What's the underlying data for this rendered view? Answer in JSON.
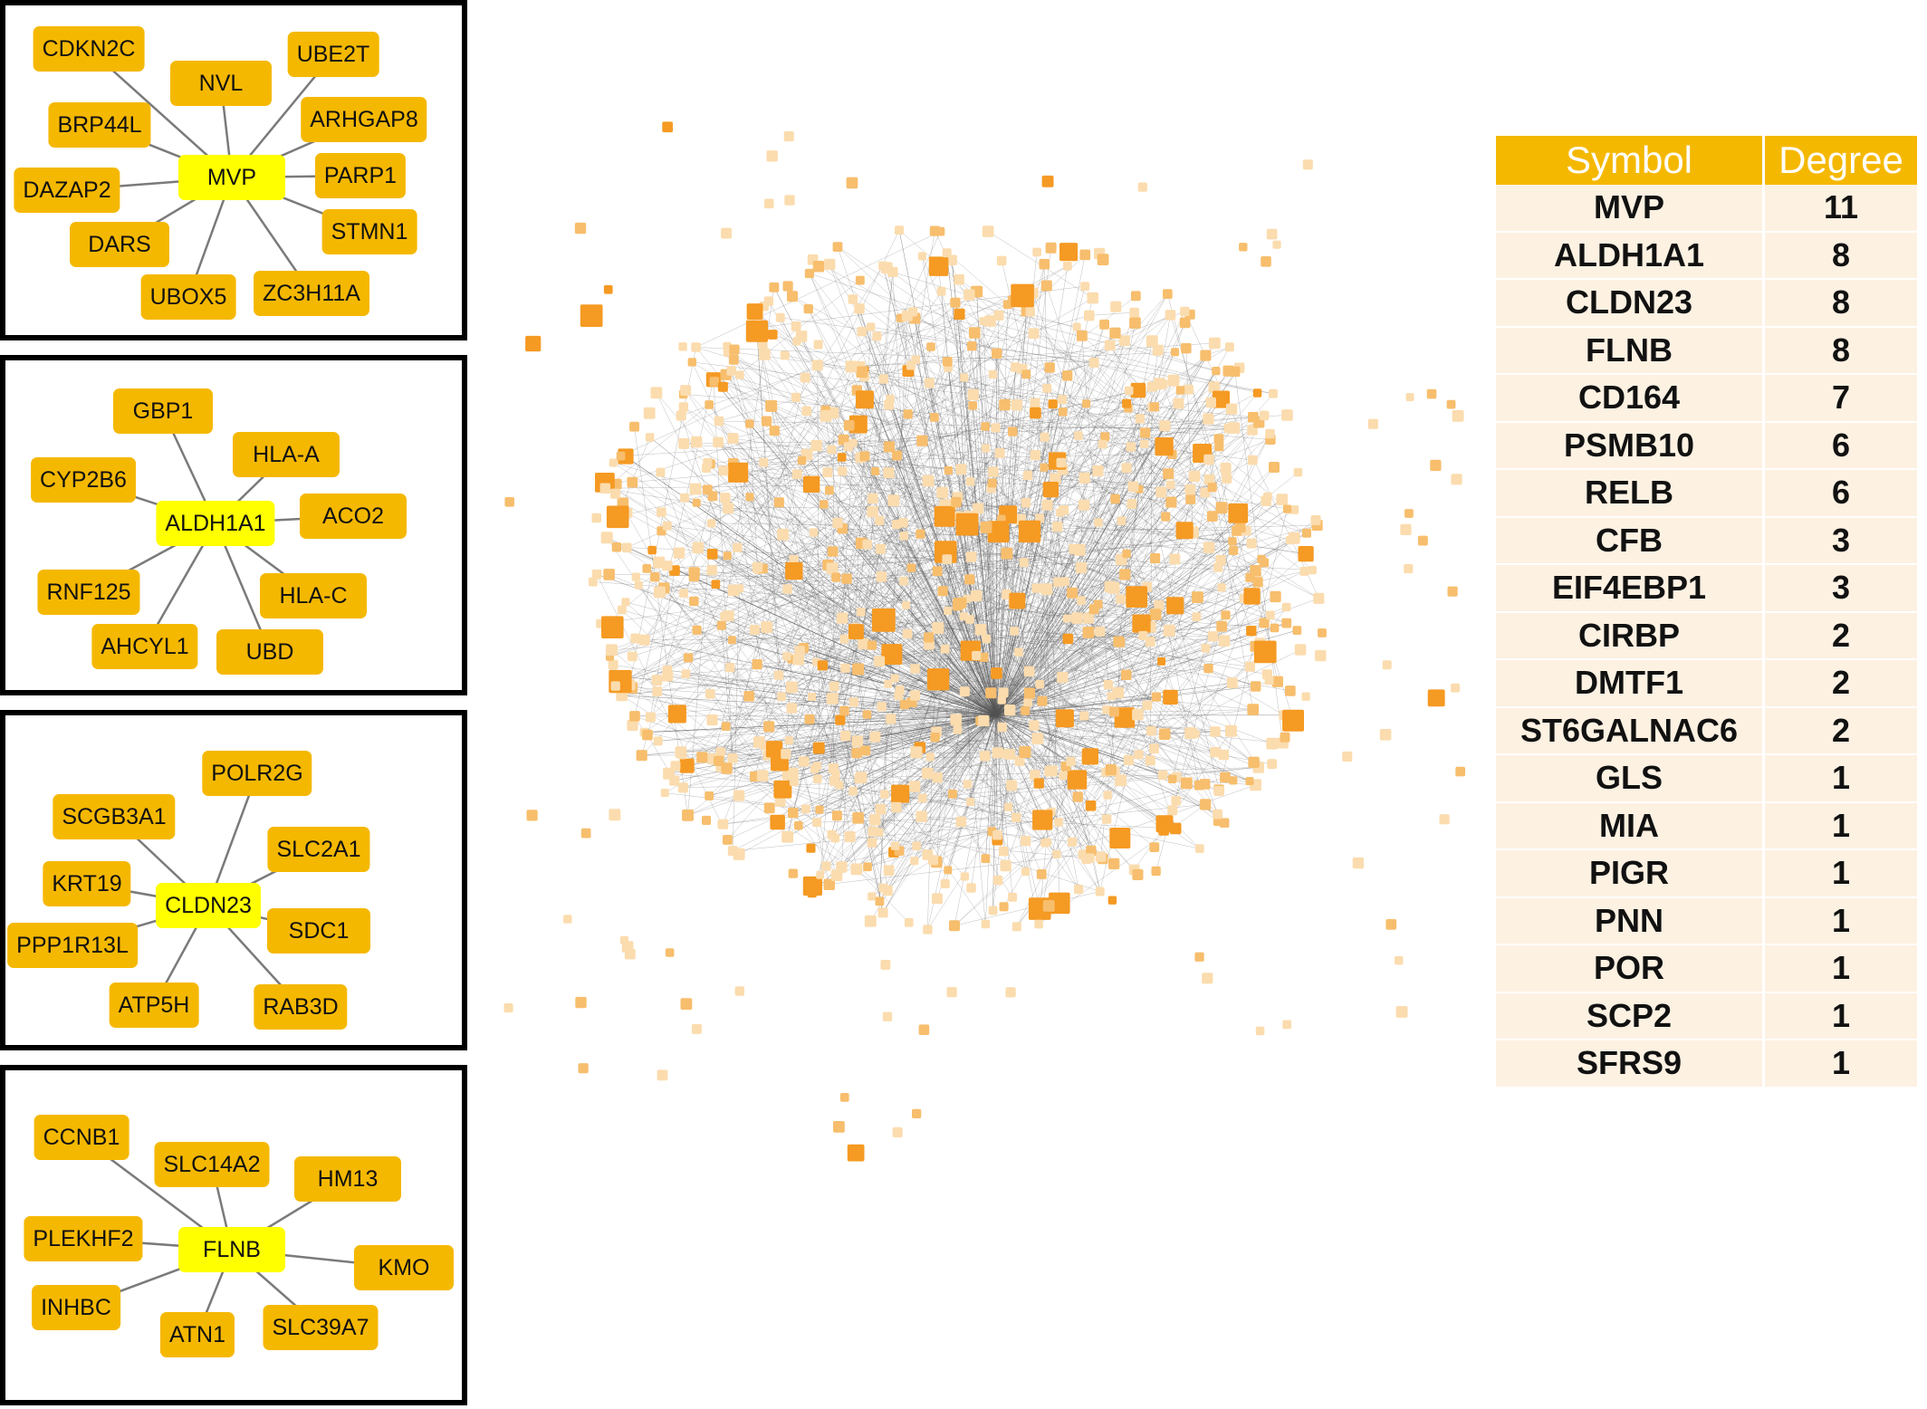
{
  "colors": {
    "hub": "#ffff00",
    "neighbor": "#f5b800",
    "edge": "#7a7a7a",
    "table_header": "#f5b800",
    "table_row": "#fdf1e2",
    "network_dark": "#f59a23",
    "network_mid": "#f7be6d",
    "network_light": "#fbdcae"
  },
  "modules": [
    {
      "hub": "MVP",
      "neighbors": [
        "CDKN2C",
        "NVL",
        "UBE2T",
        "ARHGAP8",
        "BRP44L",
        "PARP1",
        "DAZAP2",
        "STMN1",
        "DARS",
        "UBOX5",
        "ZC3H11A"
      ]
    },
    {
      "hub": "ALDH1A1",
      "neighbors": [
        "GBP1",
        "HLA-A",
        "CYP2B6",
        "ACO2",
        "RNF125",
        "HLA-C",
        "AHCYL1",
        "UBD"
      ]
    },
    {
      "hub": "CLDN23",
      "neighbors": [
        "POLR2G",
        "SCGB3A1",
        "SLC2A1",
        "KRT19",
        "SDC1",
        "PPP1R13L",
        "ATP5H",
        "RAB3D"
      ]
    },
    {
      "hub": "FLNB",
      "neighbors": [
        "CCNB1",
        "SLC14A2",
        "HM13",
        "PLEKHF2",
        "KMO",
        "INHBC",
        "ATN1",
        "SLC39A7"
      ]
    }
  ],
  "table": {
    "headers": [
      "Symbol",
      "Degree"
    ],
    "rows": [
      [
        "MVP",
        "11"
      ],
      [
        "ALDH1A1",
        "8"
      ],
      [
        "CLDN23",
        "8"
      ],
      [
        "FLNB",
        "8"
      ],
      [
        "CD164",
        "7"
      ],
      [
        "PSMB10",
        "6"
      ],
      [
        "RELB",
        "6"
      ],
      [
        "CFB",
        "3"
      ],
      [
        "EIF4EBP1",
        "3"
      ],
      [
        "CIRBP",
        "2"
      ],
      [
        "DMTF1",
        "2"
      ],
      [
        "ST6GALNAC6",
        "2"
      ],
      [
        "GLS",
        "1"
      ],
      [
        "MIA",
        "1"
      ],
      [
        "PIGR",
        "1"
      ],
      [
        "PNN",
        "1"
      ],
      [
        "POR",
        "1"
      ],
      [
        "SCP2",
        "1"
      ],
      [
        "SFRS9",
        "1"
      ]
    ]
  }
}
